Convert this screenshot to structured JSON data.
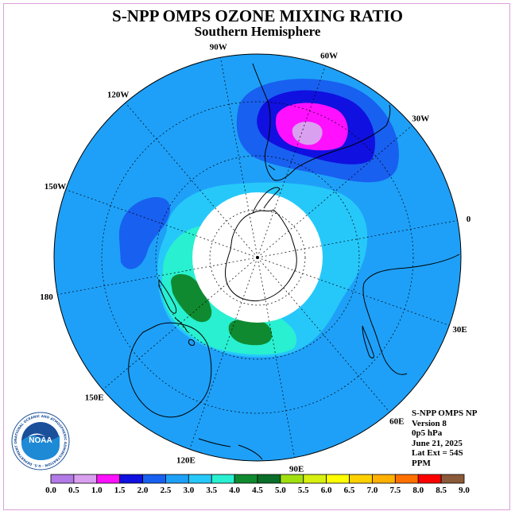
{
  "title": "S-NPP OMPS OZONE MIXING RATIO",
  "subtitle": "Southern Hemisphere",
  "logo": {
    "text": "NOAA",
    "ring_text": "NATIONAL OCEANIC AND ATMOSPHERIC ADMINISTRATION · U.S. DEPARTMENT OF COMMERCE"
  },
  "longitude_labels": [
    {
      "text": "0",
      "lon": 0
    },
    {
      "text": "30E",
      "lon": 30
    },
    {
      "text": "60E",
      "lon": 60
    },
    {
      "text": "90E",
      "lon": 90
    },
    {
      "text": "120E",
      "lon": 120
    },
    {
      "text": "150E",
      "lon": 150
    },
    {
      "text": "180",
      "lon": 180
    },
    {
      "text": "150W",
      "lon": -150
    },
    {
      "text": "120W",
      "lon": -120
    },
    {
      "text": "90W",
      "lon": -90
    },
    {
      "text": "60W",
      "lon": -60
    },
    {
      "text": "30W",
      "lon": -30
    }
  ],
  "info": {
    "instrument": "S-NPP OMPS NP",
    "version": "Version 8",
    "level": "0p5 hPa",
    "date": "June 21, 2025",
    "lat_ext": "Lat Ext = 54S",
    "units": "PPM"
  },
  "colorbar": {
    "ticks": [
      "0.0",
      "0.5",
      "1.0",
      "1.5",
      "2.0",
      "2.5",
      "3.0",
      "3.5",
      "4.0",
      "4.5",
      "5.0",
      "5.5",
      "6.0",
      "6.5",
      "7.0",
      "7.5",
      "8.0",
      "8.5",
      "9.0"
    ],
    "colors": [
      "#b27ae6",
      "#daa0f0",
      "#ff10ff",
      "#1010e0",
      "#1860f0",
      "#1ea0f8",
      "#26c8fa",
      "#28f0d0",
      "#108a30",
      "#0a6e28",
      "#a0e010",
      "#d8f010",
      "#ffff00",
      "#ffd000",
      "#ffb000",
      "#ff7000",
      "#ff0000",
      "#8b5a3a"
    ]
  },
  "map_colors": {
    "background_level": "#1ea0f8",
    "level_2_0": "#1860f0",
    "level_3_0": "#26c8fa",
    "level_3_5": "#28f0d0",
    "level_4_0": "#108a30",
    "level_1_5": "#1010e0",
    "level_1_0": "#ff10ff",
    "level_0_5": "#daa0f0",
    "polar_night": "#ffffff"
  }
}
